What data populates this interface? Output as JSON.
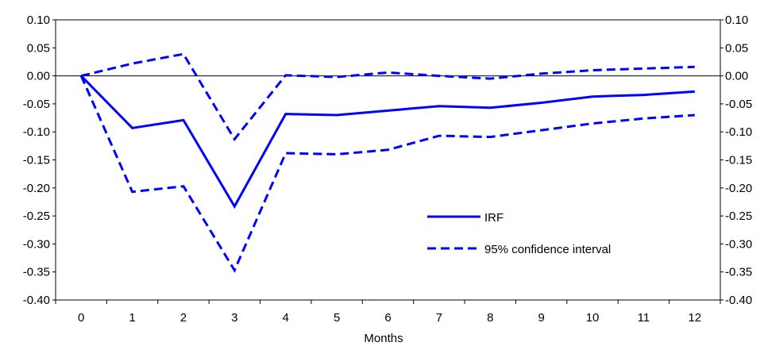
{
  "chart_data": {
    "type": "line",
    "title": "",
    "xlabel": "Months",
    "ylabel": "",
    "categories": [
      "0",
      "1",
      "2",
      "3",
      "4",
      "5",
      "6",
      "7",
      "8",
      "9",
      "10",
      "11",
      "12"
    ],
    "x": [
      0,
      1,
      2,
      3,
      4,
      5,
      6,
      7,
      8,
      9,
      10,
      11,
      12
    ],
    "ylim": [
      -0.4,
      0.1
    ],
    "y_ticks": [
      "0.10",
      "0.05",
      "0.00",
      "-0.05",
      "-0.10",
      "-0.15",
      "-0.20",
      "-0.25",
      "-0.30",
      "-0.35",
      "-0.40"
    ],
    "y_tick_values": [
      0.1,
      0.05,
      0.0,
      -0.05,
      -0.1,
      -0.15,
      -0.2,
      -0.25,
      -0.3,
      -0.35,
      -0.4
    ],
    "grid": false,
    "legend_position": "lower-right",
    "line_color": "#0000ff",
    "series": [
      {
        "name": "IRF",
        "style": "solid",
        "values": [
          0.0,
          -0.093,
          -0.079,
          -0.233,
          -0.068,
          -0.07,
          -0.062,
          -0.054,
          -0.057,
          -0.048,
          -0.037,
          -0.034,
          -0.028
        ]
      },
      {
        "name": "95% confidence interval",
        "style": "dashed",
        "values": [
          0.0,
          0.022,
          0.039,
          -0.113,
          0.001,
          -0.002,
          0.006,
          0.0,
          -0.005,
          0.004,
          0.01,
          0.013,
          0.016
        ]
      },
      {
        "name": "",
        "style": "dashed",
        "values": [
          0.0,
          -0.207,
          -0.197,
          -0.347,
          -0.138,
          -0.14,
          -0.132,
          -0.107,
          -0.109,
          -0.097,
          -0.085,
          -0.076,
          -0.07
        ]
      }
    ],
    "legend": [
      {
        "label": "IRF",
        "style": "solid"
      },
      {
        "label": "95% confidence interval",
        "style": "dashed"
      }
    ]
  }
}
